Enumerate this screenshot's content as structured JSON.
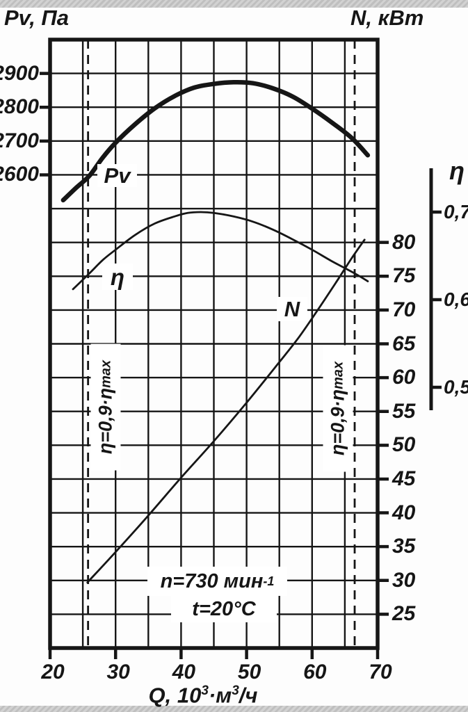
{
  "titles": {
    "left_axis": "Pv, Па",
    "right_axis": "N, кВт",
    "eta_axis": "η"
  },
  "x_axis_title": {
    "base": "Q, 10",
    "sup1": "3",
    "mid": "·м",
    "sup2": "3",
    "end": "/ч"
  },
  "curve_labels": {
    "pv": "Pv",
    "eta": "η",
    "n": "N"
  },
  "annotations": {
    "speed_base": "n=730 мин",
    "speed_sup": "-1",
    "temperature": "t=20°C",
    "boundary_base": "η=0,9·η",
    "boundary_sub": "max"
  },
  "colors": {
    "ink": "#161616",
    "paper": "#ffffff",
    "scan_strip": "#c9c9c9"
  },
  "chart_data": {
    "type": "line",
    "xlabel": "Q, 10³·м³/ч",
    "x_range": [
      20,
      70
    ],
    "x_ticks": [
      20,
      30,
      40,
      50,
      60,
      70
    ],
    "grid": true,
    "axes": {
      "pv": {
        "label": "Pv, Па",
        "side": "left",
        "ticks": [
          2900,
          2800,
          2700,
          2600
        ]
      },
      "n": {
        "label": "N, кВт",
        "side": "right",
        "ticks": [
          80,
          75,
          70,
          65,
          60,
          55,
          50,
          45,
          40,
          35,
          30,
          25
        ]
      },
      "eta": {
        "label": "η",
        "side": "right-outer",
        "ticks_text": [
          "0,7",
          "0,6",
          "0,5"
        ],
        "ticks": [
          0.7,
          0.6,
          0.5
        ]
      }
    },
    "series": [
      {
        "name": "Pv",
        "axis": "pv",
        "points": [
          [
            22,
            2525
          ],
          [
            24,
            2562
          ],
          [
            26,
            2597
          ],
          [
            28,
            2650
          ],
          [
            30,
            2695
          ],
          [
            33,
            2750
          ],
          [
            36,
            2797
          ],
          [
            39,
            2833
          ],
          [
            42,
            2858
          ],
          [
            45,
            2869
          ],
          [
            48,
            2874
          ],
          [
            51,
            2871
          ],
          [
            54,
            2856
          ],
          [
            57,
            2832
          ],
          [
            60,
            2796
          ],
          [
            63,
            2755
          ],
          [
            66,
            2710
          ],
          [
            68.5,
            2658
          ]
        ]
      },
      {
        "name": "η",
        "axis": "eta",
        "points": [
          [
            23.5,
            0.612
          ],
          [
            26,
            0.63
          ],
          [
            28,
            0.645
          ],
          [
            30,
            0.657
          ],
          [
            33,
            0.674
          ],
          [
            36,
            0.687
          ],
          [
            39,
            0.695
          ],
          [
            41,
            0.699
          ],
          [
            43,
            0.7
          ],
          [
            45,
            0.699
          ],
          [
            48,
            0.695
          ],
          [
            51,
            0.689
          ],
          [
            54,
            0.68
          ],
          [
            57,
            0.669
          ],
          [
            60,
            0.657
          ],
          [
            63,
            0.644
          ],
          [
            66.5,
            0.63
          ],
          [
            68.5,
            0.621
          ]
        ]
      },
      {
        "name": "N",
        "axis": "n",
        "points": [
          [
            25.7,
            29.7
          ],
          [
            30,
            34.2
          ],
          [
            35,
            39.6
          ],
          [
            40,
            45.2
          ],
          [
            45,
            50.6
          ],
          [
            50,
            56.3
          ],
          [
            55,
            62.3
          ],
          [
            58,
            66.0
          ],
          [
            61,
            70.2
          ],
          [
            64,
            74.6
          ],
          [
            66,
            77.6
          ],
          [
            68,
            80.4
          ]
        ]
      }
    ],
    "operating_range": {
      "q_low": 25.8,
      "q_high": 66.5,
      "label": "η=0,9·ηmax"
    },
    "conditions": [
      "n=730 мин⁻¹",
      "t=20°C"
    ]
  }
}
